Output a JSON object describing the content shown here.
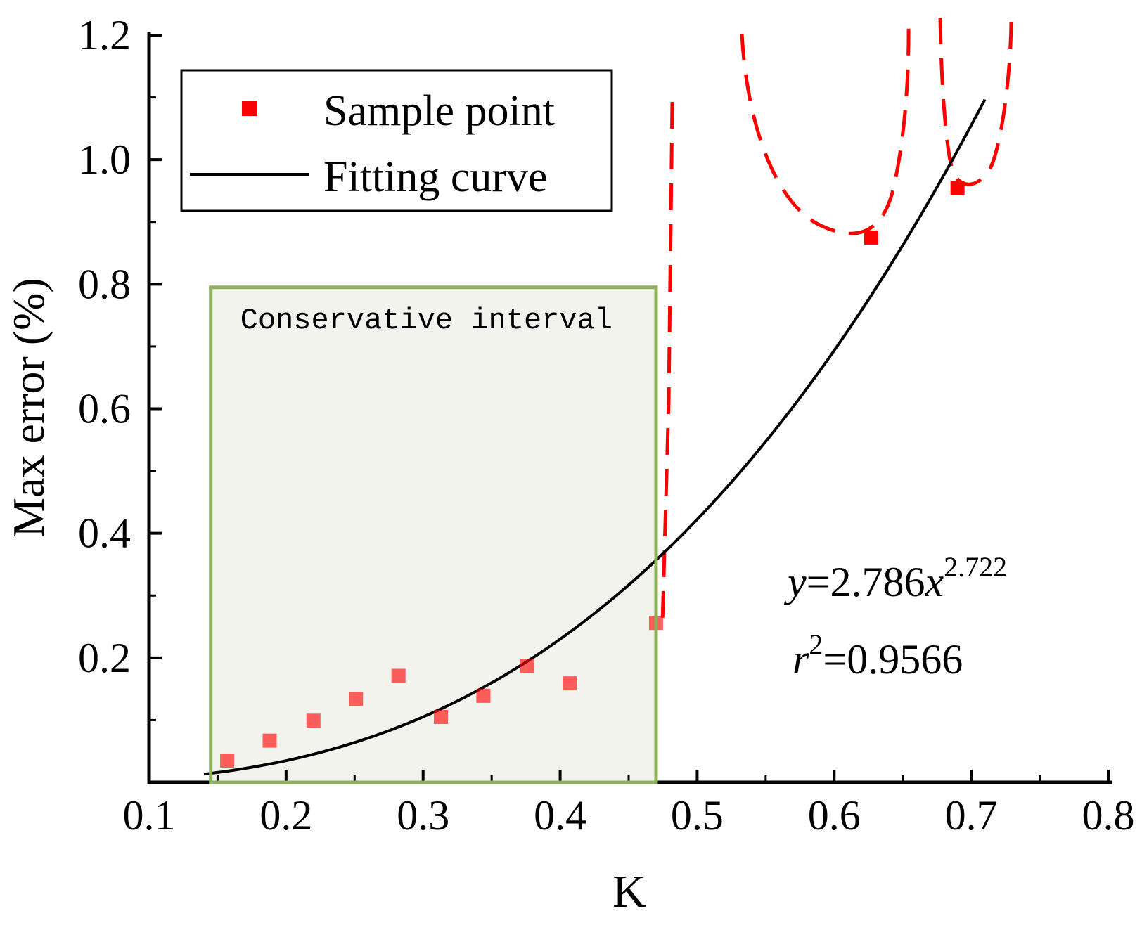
{
  "chart_data": {
    "type": "scatter",
    "xlabel": "K",
    "ylabel": "Max error (%)",
    "xlim": [
      0.1,
      0.8
    ],
    "ylim": [
      0.0,
      1.2
    ],
    "x_ticks": [
      "0.1",
      "0.2",
      "0.3",
      "0.4",
      "0.5",
      "0.6",
      "0.7",
      "0.8"
    ],
    "y_ticks": [
      "0.2",
      "0.4",
      "0.6",
      "0.8",
      "1.0",
      "1.2"
    ],
    "legend_position": "top-left",
    "series": [
      {
        "name": "Sample point",
        "kind": "scatter",
        "color": "#ff0000",
        "points": [
          {
            "x": 0.157,
            "y": 0.035
          },
          {
            "x": 0.188,
            "y": 0.067
          },
          {
            "x": 0.22,
            "y": 0.099
          },
          {
            "x": 0.251,
            "y": 0.134
          },
          {
            "x": 0.282,
            "y": 0.171
          },
          {
            "x": 0.313,
            "y": 0.105
          },
          {
            "x": 0.344,
            "y": 0.139
          },
          {
            "x": 0.376,
            "y": 0.187
          },
          {
            "x": 0.407,
            "y": 0.159
          },
          {
            "x": 0.47,
            "y": 0.256
          },
          {
            "x": 0.627,
            "y": 0.875
          },
          {
            "x": 0.69,
            "y": 0.955
          }
        ]
      },
      {
        "name": "Fitting curve",
        "kind": "line",
        "color": "#000000",
        "equation": {
          "a": 2.786,
          "b": 2.722
        },
        "x_range": [
          0.14,
          0.71
        ]
      }
    ],
    "annotations": {
      "equation_y": "y",
      "equation_eq": "=2.786",
      "equation_x": "x",
      "equation_exp": "2.722",
      "r2_r": "r",
      "r2_sup": "2",
      "r2_val": "=0.9566",
      "interval_label": "Conservative interval"
    },
    "conservative_interval": {
      "x_range": [
        0.145,
        0.47
      ],
      "y_range": [
        0.0,
        0.795
      ],
      "fill": "#f1f3ec",
      "stroke": "#8db15a"
    },
    "highlight_color": "#ff0000"
  }
}
